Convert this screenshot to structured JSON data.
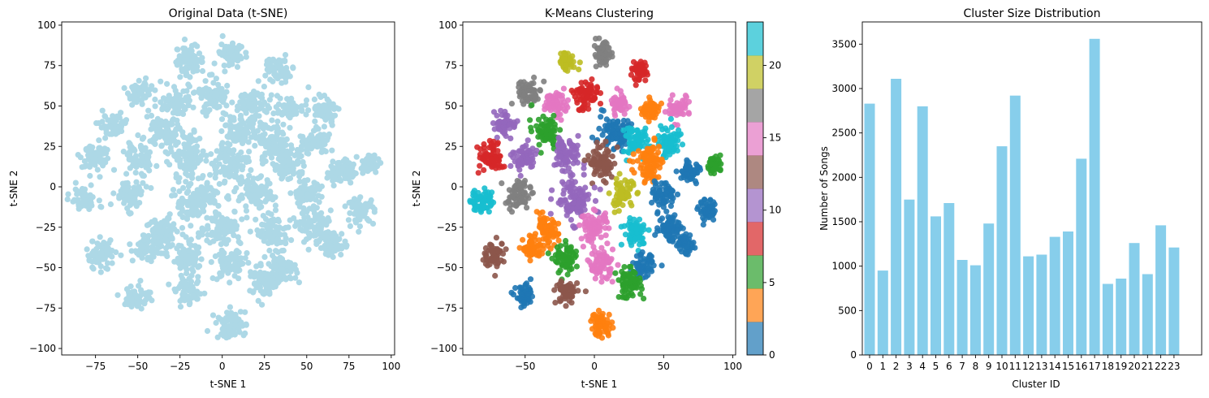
{
  "chart_data": [
    {
      "type": "scatter",
      "title": "Original Data (t-SNE)",
      "xlabel": "t-SNE 1",
      "ylabel": "t-SNE 2",
      "xlim": [
        -95,
        102
      ],
      "ylim": [
        -104,
        102
      ],
      "x_ticks": [
        -75,
        -50,
        -25,
        0,
        25,
        50,
        75,
        100
      ],
      "y_ticks": [
        -100,
        -75,
        -50,
        -25,
        0,
        25,
        50,
        75,
        100
      ],
      "x_tick_labels": [
        "−75",
        "−50",
        "−25",
        "0",
        "25",
        "50",
        "75",
        "100"
      ],
      "y_tick_labels": [
        "−100",
        "−75",
        "−50",
        "−25",
        "0",
        "25",
        "50",
        "75",
        "100"
      ],
      "point_color": "#add8e6",
      "grid": false,
      "clusters": [
        {
          "cx": -20,
          "cy": 78,
          "r": 8
        },
        {
          "cx": 5,
          "cy": 82,
          "r": 7
        },
        {
          "cx": 33,
          "cy": 72,
          "r": 7
        },
        {
          "cx": -48,
          "cy": 58,
          "r": 7
        },
        {
          "cx": -5,
          "cy": 56,
          "r": 9
        },
        {
          "cx": 18,
          "cy": 52,
          "r": 8
        },
        {
          "cx": -28,
          "cy": 52,
          "r": 8
        },
        {
          "cx": 40,
          "cy": 48,
          "r": 7
        },
        {
          "cx": 60,
          "cy": 48,
          "r": 7
        },
        {
          "cx": -65,
          "cy": 38,
          "r": 7
        },
        {
          "cx": -35,
          "cy": 35,
          "r": 9
        },
        {
          "cx": 10,
          "cy": 34,
          "r": 9
        },
        {
          "cx": 30,
          "cy": 28,
          "r": 10
        },
        {
          "cx": 55,
          "cy": 28,
          "r": 8
        },
        {
          "cx": -75,
          "cy": 18,
          "r": 8
        },
        {
          "cx": -50,
          "cy": 18,
          "r": 8
        },
        {
          "cx": -20,
          "cy": 20,
          "r": 10
        },
        {
          "cx": 5,
          "cy": 15,
          "r": 10
        },
        {
          "cx": 40,
          "cy": 15,
          "r": 9
        },
        {
          "cx": 70,
          "cy": 10,
          "r": 7
        },
        {
          "cx": 87,
          "cy": 14,
          "r": 5
        },
        {
          "cx": -82,
          "cy": -8,
          "r": 7
        },
        {
          "cx": -55,
          "cy": -5,
          "r": 8
        },
        {
          "cx": -15,
          "cy": -8,
          "r": 13
        },
        {
          "cx": 20,
          "cy": -5,
          "r": 10
        },
        {
          "cx": 50,
          "cy": -5,
          "r": 8
        },
        {
          "cx": 82,
          "cy": -15,
          "r": 7
        },
        {
          "cx": -35,
          "cy": -28,
          "r": 9
        },
        {
          "cx": 0,
          "cy": -25,
          "r": 10
        },
        {
          "cx": 30,
          "cy": -28,
          "r": 9
        },
        {
          "cx": 55,
          "cy": -25,
          "r": 9
        },
        {
          "cx": -72,
          "cy": -42,
          "r": 8
        },
        {
          "cx": -45,
          "cy": -38,
          "r": 7
        },
        {
          "cx": -20,
          "cy": -45,
          "r": 9
        },
        {
          "cx": 5,
          "cy": -48,
          "r": 9
        },
        {
          "cx": 35,
          "cy": -50,
          "r": 8
        },
        {
          "cx": 65,
          "cy": -35,
          "r": 7
        },
        {
          "cx": -50,
          "cy": -68,
          "r": 7
        },
        {
          "cx": -20,
          "cy": -65,
          "r": 7
        },
        {
          "cx": 25,
          "cy": -60,
          "r": 8
        },
        {
          "cx": 5,
          "cy": -85,
          "r": 8
        }
      ]
    },
    {
      "type": "scatter",
      "title": "K-Means Clustering",
      "xlabel": "t-SNE 1",
      "ylabel": "t-SNE 2",
      "xlim": [
        -95,
        102
      ],
      "ylim": [
        -104,
        102
      ],
      "x_ticks": [
        -50,
        0,
        50,
        100
      ],
      "y_ticks": [
        -100,
        -75,
        -50,
        -25,
        0,
        25,
        50,
        75,
        100
      ],
      "x_tick_labels": [
        "−50",
        "0",
        "50",
        "100"
      ],
      "y_tick_labels": [
        "−100",
        "−75",
        "−50",
        "−25",
        "0",
        "25",
        "50",
        "75",
        "100"
      ],
      "colormap": "tab10",
      "grid": false,
      "colorbar": {
        "range": [
          0,
          23
        ],
        "ticks": [
          0,
          5,
          10,
          15,
          20
        ],
        "tick_labels": [
          "0",
          "5",
          "10",
          "15",
          "20"
        ],
        "colors": [
          "#1f77b4",
          "#ff7f0e",
          "#2ca02c",
          "#d62728",
          "#9467bd",
          "#8c564b",
          "#e377c2",
          "#7f7f7f",
          "#bcbd22",
          "#17becf"
        ]
      },
      "clusters": [
        {
          "cx": -20,
          "cy": 78,
          "r": 5,
          "color": "#bcbd22"
        },
        {
          "cx": 5,
          "cy": 82,
          "r": 6,
          "color": "#7f7f7f"
        },
        {
          "cx": 33,
          "cy": 72,
          "r": 6,
          "color": "#d62728"
        },
        {
          "cx": -48,
          "cy": 58,
          "r": 7,
          "color": "#7f7f7f"
        },
        {
          "cx": -5,
          "cy": 56,
          "r": 8,
          "color": "#d62728"
        },
        {
          "cx": 18,
          "cy": 52,
          "r": 6,
          "color": "#e377c2"
        },
        {
          "cx": -28,
          "cy": 52,
          "r": 7,
          "color": "#e377c2"
        },
        {
          "cx": 40,
          "cy": 48,
          "r": 6,
          "color": "#ff7f0e"
        },
        {
          "cx": 60,
          "cy": 48,
          "r": 6,
          "color": "#e377c2"
        },
        {
          "cx": -65,
          "cy": 38,
          "r": 7,
          "color": "#9467bd"
        },
        {
          "cx": -35,
          "cy": 35,
          "r": 8,
          "color": "#2ca02c"
        },
        {
          "cx": 15,
          "cy": 34,
          "r": 10,
          "color": "#1f77b4"
        },
        {
          "cx": 30,
          "cy": 28,
          "r": 8,
          "color": "#17becf"
        },
        {
          "cx": 55,
          "cy": 28,
          "r": 8,
          "color": "#17becf"
        },
        {
          "cx": -75,
          "cy": 18,
          "r": 8,
          "color": "#d62728"
        },
        {
          "cx": -50,
          "cy": 18,
          "r": 8,
          "color": "#9467bd"
        },
        {
          "cx": -20,
          "cy": 20,
          "r": 9,
          "color": "#9467bd"
        },
        {
          "cx": 5,
          "cy": 15,
          "r": 9,
          "color": "#8c564b"
        },
        {
          "cx": 40,
          "cy": 15,
          "r": 10,
          "color": "#ff7f0e"
        },
        {
          "cx": 70,
          "cy": 10,
          "r": 6,
          "color": "#1f77b4"
        },
        {
          "cx": 87,
          "cy": 14,
          "r": 5,
          "color": "#2ca02c"
        },
        {
          "cx": -82,
          "cy": -8,
          "r": 7,
          "color": "#17becf"
        },
        {
          "cx": -55,
          "cy": -5,
          "r": 8,
          "color": "#7f7f7f"
        },
        {
          "cx": -15,
          "cy": -8,
          "r": 12,
          "color": "#9467bd"
        },
        {
          "cx": 20,
          "cy": -5,
          "r": 8,
          "color": "#bcbd22"
        },
        {
          "cx": 50,
          "cy": -5,
          "r": 7,
          "color": "#1f77b4"
        },
        {
          "cx": 82,
          "cy": -15,
          "r": 6,
          "color": "#1f77b4"
        },
        {
          "cx": -35,
          "cy": -28,
          "r": 8,
          "color": "#ff7f0e"
        },
        {
          "cx": 0,
          "cy": -25,
          "r": 9,
          "color": "#e377c2"
        },
        {
          "cx": 30,
          "cy": -28,
          "r": 8,
          "color": "#17becf"
        },
        {
          "cx": 55,
          "cy": -25,
          "r": 8,
          "color": "#1f77b4"
        },
        {
          "cx": -72,
          "cy": -42,
          "r": 7,
          "color": "#8c564b"
        },
        {
          "cx": -45,
          "cy": -38,
          "r": 6,
          "color": "#ff7f0e"
        },
        {
          "cx": -20,
          "cy": -45,
          "r": 8,
          "color": "#2ca02c"
        },
        {
          "cx": 5,
          "cy": -48,
          "r": 8,
          "color": "#e377c2"
        },
        {
          "cx": 35,
          "cy": -50,
          "r": 7,
          "color": "#1f77b4"
        },
        {
          "cx": 65,
          "cy": -35,
          "r": 6,
          "color": "#1f77b4"
        },
        {
          "cx": -50,
          "cy": -68,
          "r": 6,
          "color": "#1f77b4"
        },
        {
          "cx": -20,
          "cy": -65,
          "r": 7,
          "color": "#8c564b"
        },
        {
          "cx": 25,
          "cy": -60,
          "r": 8,
          "color": "#2ca02c"
        },
        {
          "cx": 5,
          "cy": -85,
          "r": 7,
          "color": "#ff7f0e"
        }
      ]
    },
    {
      "type": "bar",
      "title": "Cluster Size Distribution",
      "xlabel": "Cluster ID",
      "ylabel": "Number of Songs",
      "ylim": [
        0,
        3750
      ],
      "y_ticks": [
        0,
        500,
        1000,
        1500,
        2000,
        2500,
        3000,
        3500
      ],
      "y_tick_labels": [
        "0",
        "500",
        "1000",
        "1500",
        "2000",
        "2500",
        "3000",
        "3500"
      ],
      "categories": [
        "0",
        "1",
        "2",
        "3",
        "4",
        "5",
        "6",
        "7",
        "8",
        "9",
        "10",
        "11",
        "12",
        "13",
        "14",
        "15",
        "16",
        "17",
        "18",
        "19",
        "20",
        "21",
        "22",
        "23"
      ],
      "values": [
        2830,
        950,
        3110,
        1750,
        2800,
        1560,
        1710,
        1070,
        1010,
        1480,
        2350,
        2920,
        1110,
        1130,
        1330,
        1390,
        2210,
        3560,
        800,
        860,
        1260,
        910,
        1460,
        1210
      ],
      "bar_color": "#87ceeb",
      "grid": false
    }
  ]
}
